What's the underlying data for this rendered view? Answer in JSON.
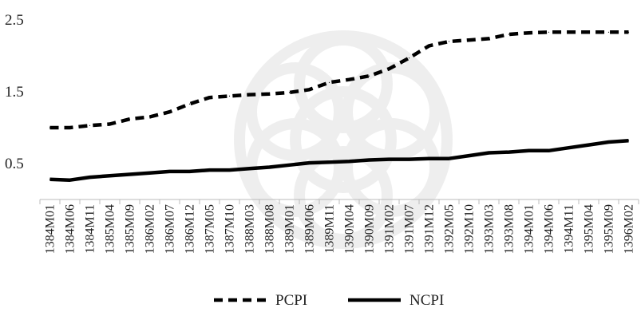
{
  "chart_data": {
    "type": "line",
    "y_ticks": [
      "2.5",
      "1.5",
      "0.5"
    ],
    "ylim": [
      0,
      2.5
    ],
    "grid": false,
    "legend_position": "bottom",
    "x_tick_labels": [
      "1384M01",
      "1384M06",
      "1384M11",
      "1385M04",
      "1385M09",
      "1386M02",
      "1386M07",
      "1386M12",
      "1387M05",
      "1387M10",
      "1388M03",
      "1388M08",
      "1389M01",
      "1389M06",
      "1389M11",
      "1390M04",
      "1390M09",
      "1391M02",
      "1391M07",
      "1391M12",
      "1392M05",
      "1392M10",
      "1393M03",
      "1393M08",
      "1394M01",
      "1394M06",
      "1394M11",
      "1395M04",
      "1395M09",
      "1396M02"
    ],
    "series": [
      {
        "name": "PCPI",
        "style": "dashed",
        "color": "#000000",
        "values": [
          1.0,
          1.0,
          1.03,
          1.05,
          1.12,
          1.15,
          1.22,
          1.33,
          1.42,
          1.44,
          1.46,
          1.47,
          1.49,
          1.53,
          1.63,
          1.67,
          1.72,
          1.82,
          1.97,
          2.14,
          2.2,
          2.22,
          2.24,
          2.3,
          2.32,
          2.33,
          2.33,
          2.33,
          2.33,
          2.33
        ]
      },
      {
        "name": "NCPI",
        "style": "solid",
        "color": "#000000",
        "values": [
          0.28,
          0.27,
          0.31,
          0.33,
          0.35,
          0.37,
          0.39,
          0.39,
          0.41,
          0.41,
          0.43,
          0.45,
          0.48,
          0.51,
          0.52,
          0.53,
          0.55,
          0.56,
          0.56,
          0.57,
          0.57,
          0.61,
          0.65,
          0.66,
          0.68,
          0.68,
          0.72,
          0.76,
          0.8,
          0.82
        ]
      }
    ]
  }
}
